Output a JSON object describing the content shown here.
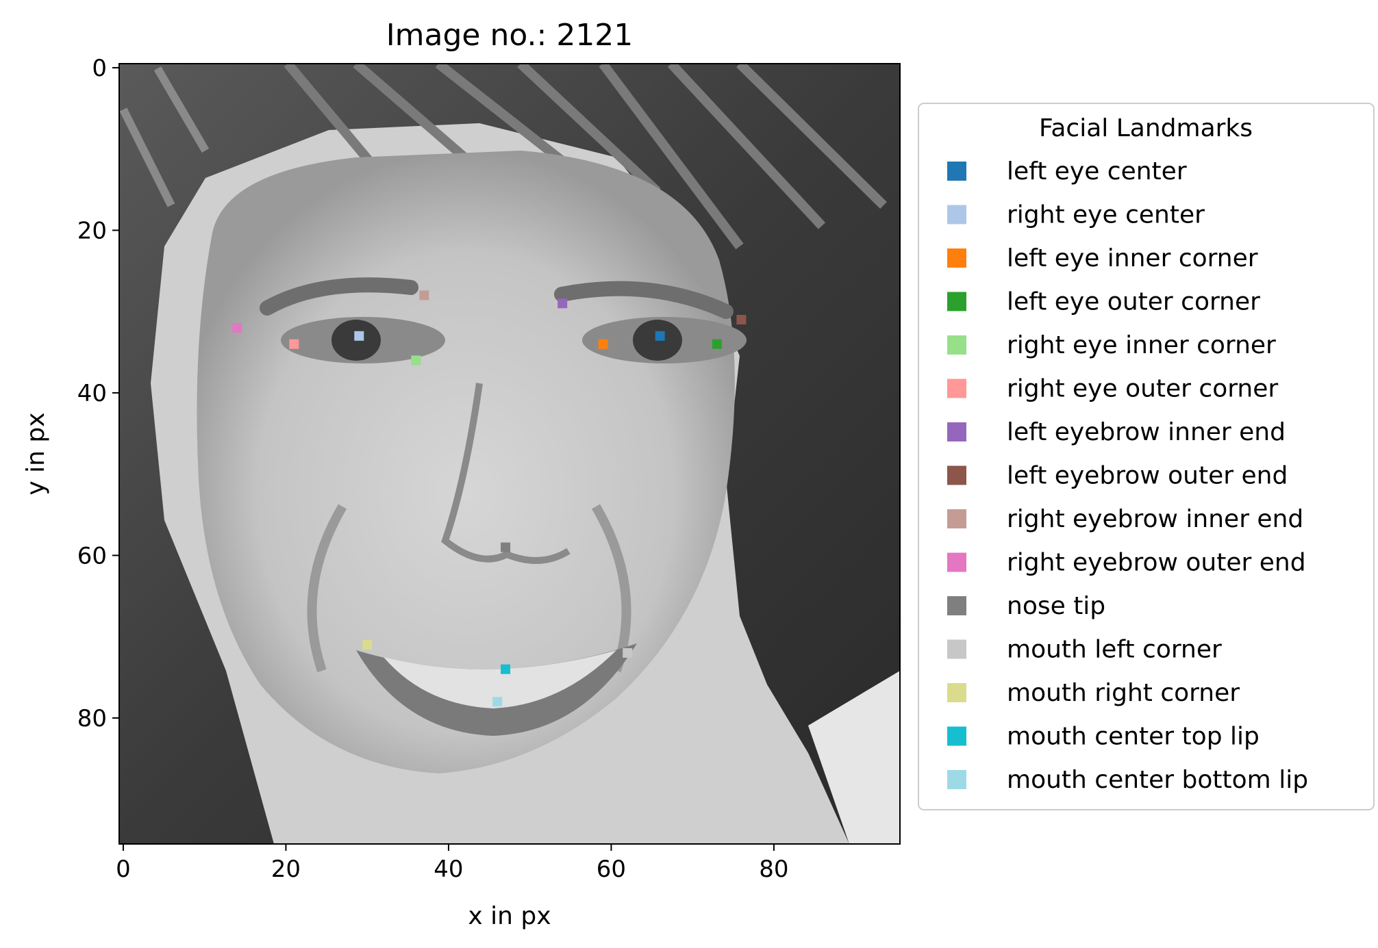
{
  "chart_data": {
    "type": "scatter",
    "title": "Image no.: 2121",
    "xlabel": "x in px",
    "ylabel": "y in px",
    "xlim": [
      -0.5,
      95.5
    ],
    "ylim": [
      95.5,
      -0.5
    ],
    "y_axis_inverted": true,
    "background": "grayscale face photograph, 96x96 px",
    "xticks": [
      0,
      20,
      40,
      60,
      80
    ],
    "yticks": [
      0,
      20,
      40,
      60,
      80
    ],
    "grid": false,
    "legend": {
      "title": "Facial Landmarks",
      "placement": "right, outside plot",
      "entries": [
        {
          "key": "left-eye-center",
          "label": "left eye center",
          "color": "#1f77b4",
          "x": 66,
          "y": 33
        },
        {
          "key": "right-eye-center",
          "label": "right eye center",
          "color": "#aec7e8",
          "x": 29,
          "y": 33
        },
        {
          "key": "left-eye-inner-corner",
          "label": "left eye inner corner",
          "color": "#ff7f0e",
          "x": 59,
          "y": 34
        },
        {
          "key": "left-eye-outer-corner",
          "label": "left eye outer corner",
          "color": "#2ca02c",
          "x": 73,
          "y": 34
        },
        {
          "key": "right-eye-inner-corner",
          "label": "right eye inner corner",
          "color": "#98df8a",
          "x": 36,
          "y": 36
        },
        {
          "key": "right-eye-outer-corner",
          "label": "right eye outer corner",
          "color": "#ff9896",
          "x": 21,
          "y": 34
        },
        {
          "key": "left-eyebrow-inner-end",
          "label": "left eyebrow inner end",
          "color": "#9467bd",
          "x": 54,
          "y": 29
        },
        {
          "key": "left-eyebrow-outer-end",
          "label": "left eyebrow outer end",
          "color": "#8c564b",
          "x": 76,
          "y": 31
        },
        {
          "key": "right-eyebrow-inner-end",
          "label": "right eyebrow inner end",
          "color": "#c49c94",
          "x": 37,
          "y": 28
        },
        {
          "key": "right-eyebrow-outer-end",
          "label": "right eyebrow outer end",
          "color": "#e377c2",
          "x": 14,
          "y": 32
        },
        {
          "key": "nose-tip",
          "label": "nose tip",
          "color": "#7f7f7f",
          "x": 47,
          "y": 59
        },
        {
          "key": "mouth-left-corner",
          "label": "mouth left corner",
          "color": "#c7c7c7",
          "x": 62,
          "y": 72
        },
        {
          "key": "mouth-right-corner",
          "label": "mouth right corner",
          "color": "#dbdb8d",
          "x": 30,
          "y": 71
        },
        {
          "key": "mouth-center-top-lip",
          "label": "mouth center top lip",
          "color": "#17becf",
          "x": 47,
          "y": 74
        },
        {
          "key": "mouth-center-bottom-lip",
          "label": "mouth center bottom lip",
          "color": "#9edae5",
          "x": 46,
          "y": 78
        }
      ]
    }
  }
}
